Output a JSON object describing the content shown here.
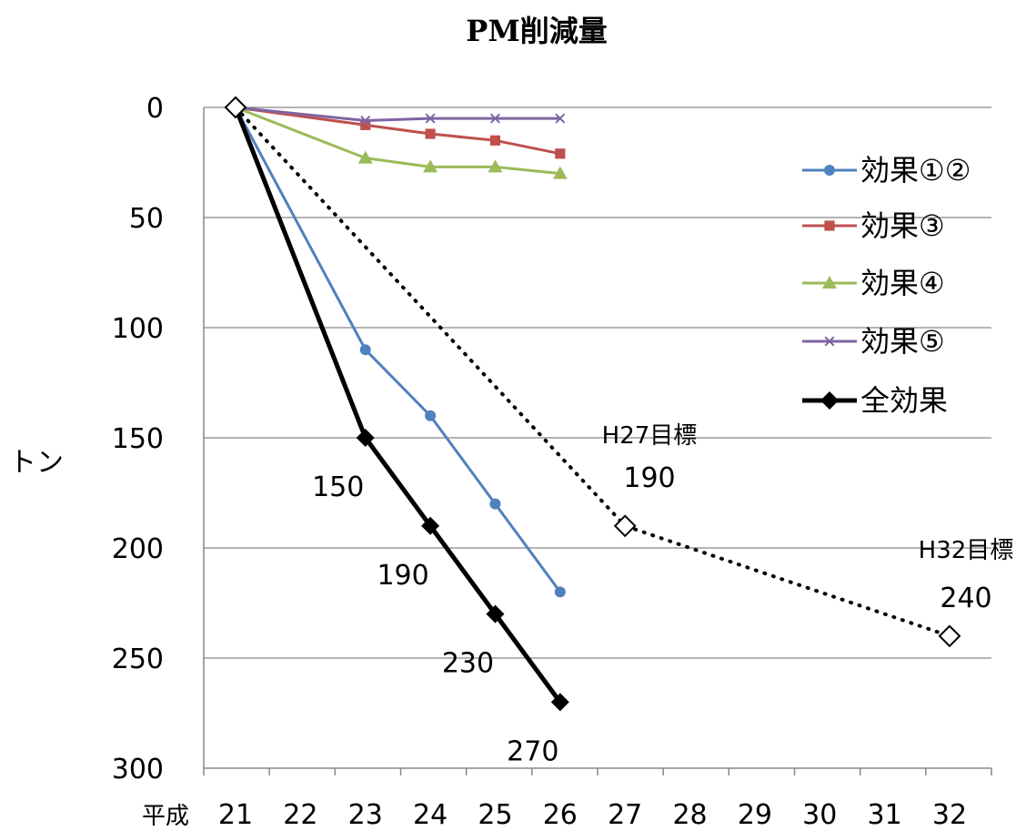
{
  "chart_data": {
    "type": "line",
    "title": "PM削減量",
    "ylabel": "トン",
    "xlabel_prefix": "平成",
    "ylim": [
      0,
      300
    ],
    "y_inverted": true,
    "y_ticks": [
      "0",
      "50",
      "100",
      "150",
      "200",
      "250",
      "300"
    ],
    "x_categories": [
      "21",
      "22",
      "23",
      "24",
      "25",
      "26",
      "27",
      "28",
      "29",
      "30",
      "31",
      "32"
    ],
    "grid": "horizontal",
    "legend_position": "right",
    "series": [
      {
        "name": "効果①②",
        "color": "#4f81bd",
        "marker": "circle",
        "points": [
          {
            "x": 21,
            "y": 0
          },
          {
            "x": 23,
            "y": 110
          },
          {
            "x": 24,
            "y": 140
          },
          {
            "x": 25,
            "y": 180
          },
          {
            "x": 26,
            "y": 220
          }
        ]
      },
      {
        "name": "効果③",
        "color": "#c0504d",
        "marker": "square",
        "points": [
          {
            "x": 21,
            "y": 0
          },
          {
            "x": 23,
            "y": 8
          },
          {
            "x": 24,
            "y": 12
          },
          {
            "x": 25,
            "y": 15
          },
          {
            "x": 26,
            "y": 21
          }
        ]
      },
      {
        "name": "効果④",
        "color": "#9bbb59",
        "marker": "triangle",
        "points": [
          {
            "x": 21,
            "y": 0
          },
          {
            "x": 23,
            "y": 23
          },
          {
            "x": 24,
            "y": 27
          },
          {
            "x": 25,
            "y": 27
          },
          {
            "x": 26,
            "y": 30
          }
        ]
      },
      {
        "name": "効果⑤",
        "color": "#8064a2",
        "marker": "x",
        "points": [
          {
            "x": 21,
            "y": 0
          },
          {
            "x": 23,
            "y": 6
          },
          {
            "x": 24,
            "y": 5
          },
          {
            "x": 25,
            "y": 5
          },
          {
            "x": 26,
            "y": 5
          }
        ]
      },
      {
        "name": "全効果",
        "color": "#000000",
        "marker": "diamond",
        "points": [
          {
            "x": 21,
            "y": 0
          },
          {
            "x": 23,
            "y": 150
          },
          {
            "x": 24,
            "y": 190
          },
          {
            "x": 25,
            "y": 230
          },
          {
            "x": 26,
            "y": 270
          }
        ],
        "labels": [
          "150",
          "190",
          "230",
          "270"
        ]
      }
    ],
    "target_series": {
      "color": "#000000",
      "style": "dotted",
      "marker": "diamond-open",
      "points": [
        {
          "x": 21,
          "y": 0
        },
        {
          "x": 27,
          "y": 190
        },
        {
          "x": 32,
          "y": 240
        }
      ],
      "annotations": [
        {
          "label": "H27目標",
          "value": "190"
        },
        {
          "label": "H32目標",
          "value": "240"
        }
      ]
    }
  }
}
